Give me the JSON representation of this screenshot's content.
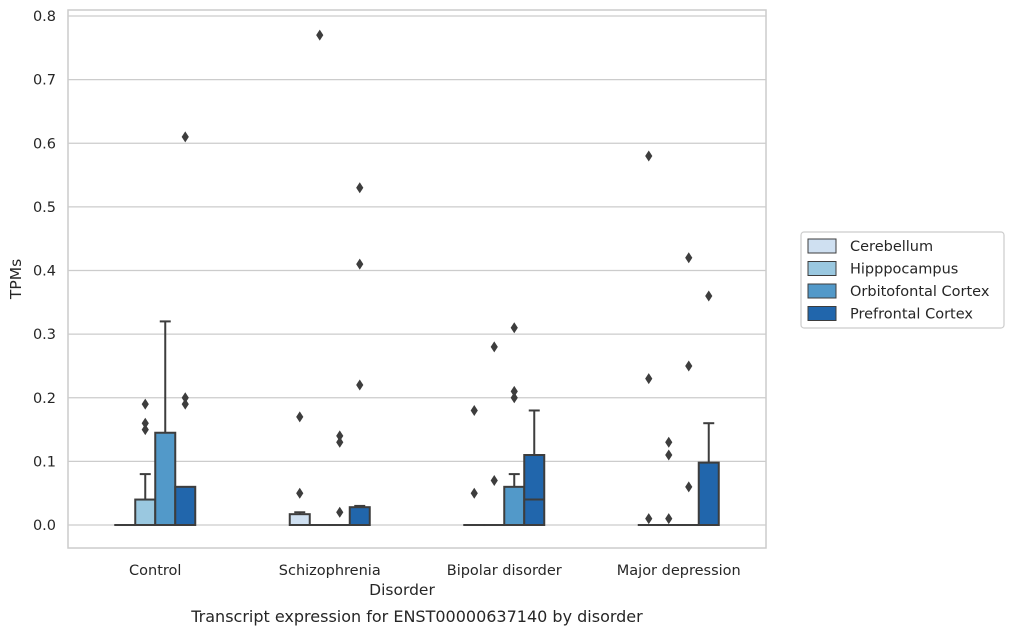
{
  "chart_data": {
    "type": "box",
    "title": "",
    "caption": "Transcript expression for ENST00000637140 by disorder",
    "xlabel": "Disorder",
    "ylabel": "TPMs",
    "ylim": [
      -0.038,
      0.812
    ],
    "yticks": [
      "0.0",
      "0.1",
      "0.2",
      "0.3",
      "0.4",
      "0.5",
      "0.6",
      "0.7",
      "0.8"
    ],
    "ytick_values": [
      0,
      0.1,
      0.2,
      0.3,
      0.4,
      0.5,
      0.6,
      0.7,
      0.8
    ],
    "grid": "horizontal",
    "legend_placement": "right",
    "categories": [
      "Control",
      "Schizophrenia",
      "Bipolar disorder",
      "Major depression"
    ],
    "series": [
      {
        "name": "Cerebellum",
        "color": "#cfe0f1",
        "boxes": [
          {
            "q1": 0,
            "median": 0,
            "q3": 0,
            "whisker_low": 0,
            "whisker_high": 0,
            "outliers": []
          },
          {
            "q1": 0,
            "median": 0,
            "q3": 0.017,
            "whisker_low": 0,
            "whisker_high": 0.02,
            "outliers": [
              0.05,
              0.17
            ]
          },
          {
            "q1": 0,
            "median": 0,
            "q3": 0,
            "whisker_low": 0,
            "whisker_high": 0,
            "outliers": [
              0.05,
              0.18
            ]
          },
          {
            "q1": 0,
            "median": 0,
            "q3": 0,
            "whisker_low": 0,
            "whisker_high": 0,
            "outliers": [
              0.01,
              0.23,
              0.58
            ]
          }
        ]
      },
      {
        "name": "Hipppocampus",
        "color": "#9ac8e0",
        "boxes": [
          {
            "q1": 0,
            "median": 0,
            "q3": 0.04,
            "whisker_low": 0,
            "whisker_high": 0.08,
            "outliers": [
              0.15,
              0.16,
              0.19
            ]
          },
          {
            "q1": 0,
            "median": 0,
            "q3": 0,
            "whisker_low": 0,
            "whisker_high": 0,
            "outliers": [
              0.77
            ]
          },
          {
            "q1": 0,
            "median": 0,
            "q3": 0,
            "whisker_low": 0,
            "whisker_high": 0,
            "outliers": [
              0.07,
              0.28
            ]
          },
          {
            "q1": 0,
            "median": 0,
            "q3": 0,
            "whisker_low": 0,
            "whisker_high": 0,
            "outliers": [
              0.01,
              0.11,
              0.13
            ]
          }
        ]
      },
      {
        "name": "Orbitofontal Cortex",
        "color": "#5299c9",
        "boxes": [
          {
            "q1": 0,
            "median": 0,
            "q3": 0.145,
            "whisker_low": 0,
            "whisker_high": 0.32,
            "outliers": []
          },
          {
            "q1": 0,
            "median": 0,
            "q3": 0,
            "whisker_low": 0,
            "whisker_high": 0,
            "outliers": [
              0.02,
              0.13,
              0.14
            ]
          },
          {
            "q1": 0,
            "median": 0,
            "q3": 0.06,
            "whisker_low": 0,
            "whisker_high": 0.08,
            "outliers": [
              0.2,
              0.21,
              0.31
            ]
          },
          {
            "q1": 0,
            "median": 0,
            "q3": 0,
            "whisker_low": 0,
            "whisker_high": 0,
            "outliers": [
              0.06,
              0.25,
              0.42
            ]
          }
        ]
      },
      {
        "name": "Prefrontal Cortex",
        "color": "#2166ac",
        "boxes": [
          {
            "q1": 0,
            "median": 0,
            "q3": 0.06,
            "whisker_low": 0,
            "whisker_high": 0.06,
            "outliers": [
              0.19,
              0.2,
              0.61
            ]
          },
          {
            "q1": 0,
            "median": 0,
            "q3": 0.028,
            "whisker_low": 0,
            "whisker_high": 0.03,
            "outliers": [
              0.22,
              0.41,
              0.53
            ]
          },
          {
            "q1": 0,
            "median": 0.04,
            "q3": 0.11,
            "whisker_low": 0,
            "whisker_high": 0.18,
            "outliers": []
          },
          {
            "q1": 0,
            "median": 0,
            "q3": 0.098,
            "whisker_low": 0,
            "whisker_high": 0.16,
            "outliers": [
              0.36
            ]
          }
        ]
      }
    ]
  }
}
